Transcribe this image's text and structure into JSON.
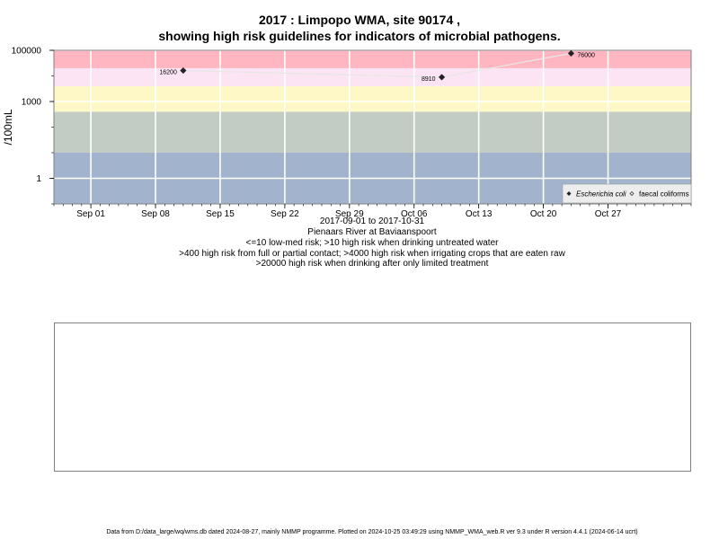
{
  "chart_data": {
    "type": "scatter",
    "title": "2017 : Limpopo WMA, site 90174 ,",
    "subtitle": "showing high risk guidelines for indicators of microbial pathogens.",
    "ylabel": "/100mL",
    "y_scale": "log",
    "ylim": [
      0.1,
      100000
    ],
    "y_ticks": [
      1,
      1000,
      100000
    ],
    "y_tick_labels": [
      "1",
      "1000",
      "100000"
    ],
    "xlim": [
      "2017-08-28",
      "2017-11-05"
    ],
    "x_ticks": [
      "2017-09-01",
      "2017-09-08",
      "2017-09-15",
      "2017-09-22",
      "2017-09-29",
      "2017-10-06",
      "2017-10-13",
      "2017-10-20",
      "2017-10-27"
    ],
    "x_tick_labels": [
      "Sep 01",
      "Sep 08",
      "Sep 15",
      "Sep 22",
      "Sep 29",
      "Oct 06",
      "Oct 13",
      "Oct 20",
      "Oct 27"
    ],
    "risk_bands": [
      {
        "from": 0.1,
        "to": 10,
        "color": "#a2b4cd"
      },
      {
        "from": 10,
        "to": 400,
        "color": "#c3ccc4"
      },
      {
        "from": 400,
        "to": 4000,
        "color": "#fdf8c6"
      },
      {
        "from": 4000,
        "to": 20000,
        "color": "#fce4f4"
      },
      {
        "from": 20000,
        "to": 100000,
        "color": "#ffb6c1"
      }
    ],
    "series": [
      {
        "name": "Escherichia coli",
        "marker": "filled-diamond",
        "points": [
          {
            "x": "2017-09-11",
            "y": 16200,
            "label": "16200"
          },
          {
            "x": "2017-10-09",
            "y": 8910,
            "label": "8910"
          },
          {
            "x": "2017-10-23",
            "y": 76000,
            "label": "76000"
          }
        ]
      },
      {
        "name": "faecal coliforms",
        "marker": "open-diamond",
        "points": []
      }
    ],
    "legend_position": "bottom-right",
    "grid": true
  },
  "captions": {
    "date_range": "2017-09-01 to 2017-10-31",
    "site": "Pienaars River at Baviaanspoort",
    "risk_line_1": "<=10 low-med risk; >10 high risk when drinking untreated water",
    "risk_line_2": ">400 high risk from full or partial contact; >4000 high risk when irrigating crops that are eaten raw",
    "risk_line_3": ">20000 high risk when drinking after only limited treatment"
  },
  "footer": "Data from D:/data_large/wq/wms.db dated 2024-08-27, mainly NMMP programme. Plotted on 2024-10-25 03:49:29 using NMMP_WMA_web.R ver 9.3 under R version 4.4.1 (2024-06-14 ucrt)"
}
